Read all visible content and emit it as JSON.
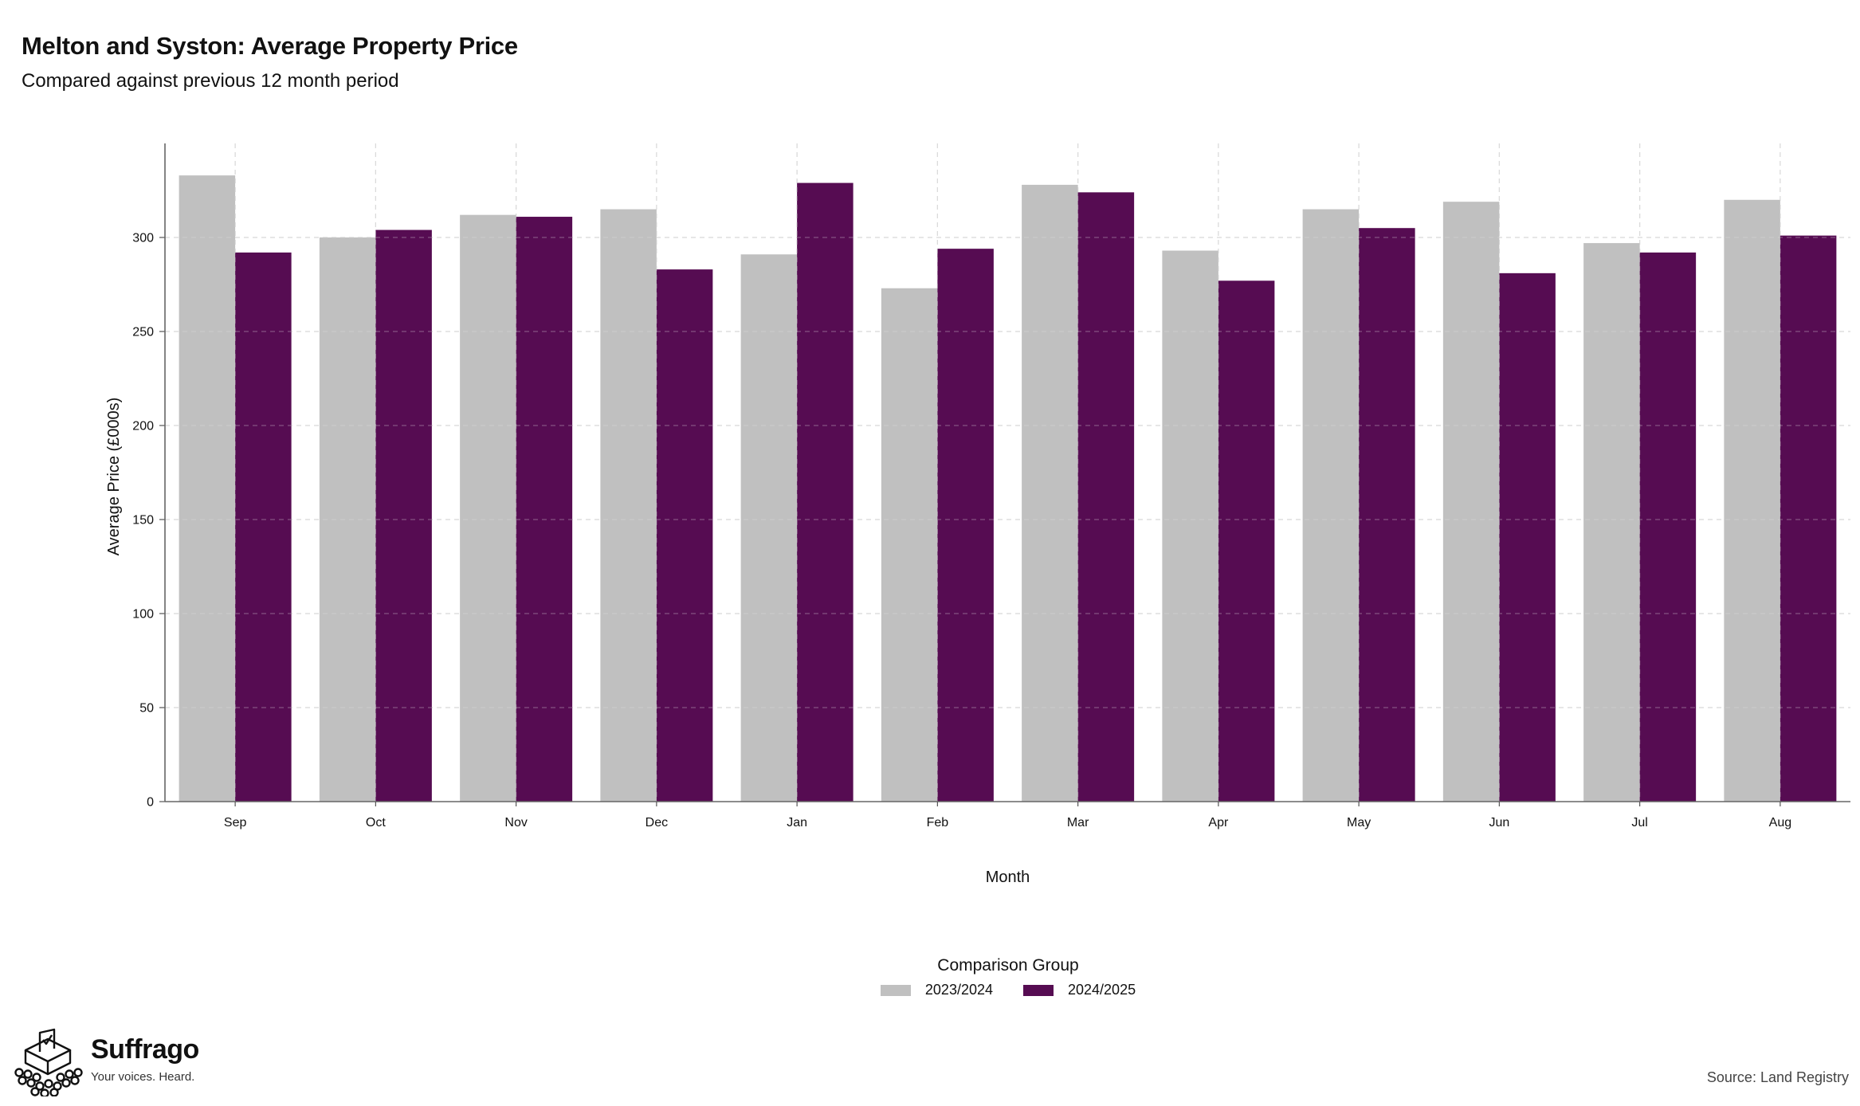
{
  "title": "Melton and Syston: Average Property Price",
  "subtitle": "Compared against previous 12 month period",
  "chart_data": {
    "type": "bar",
    "xlabel": "Month",
    "ylabel": "Average Price (£000s)",
    "categories": [
      "Sep",
      "Oct",
      "Nov",
      "Dec",
      "Jan",
      "Feb",
      "Mar",
      "Apr",
      "May",
      "Jun",
      "Jul",
      "Aug"
    ],
    "series": [
      {
        "name": "2023/2024",
        "color": "#c0c0c0",
        "values": [
          333,
          300,
          312,
          315,
          291,
          273,
          328,
          293,
          315,
          319,
          297,
          320
        ]
      },
      {
        "name": "2024/2025",
        "color": "#560c52",
        "values": [
          292,
          304,
          311,
          283,
          329,
          294,
          324,
          277,
          305,
          281,
          292,
          301
        ]
      }
    ],
    "ylim": [
      0,
      350
    ],
    "yticks": [
      0,
      50,
      100,
      150,
      200,
      250,
      300
    ],
    "grid": true,
    "legend_title": "Comparison Group",
    "legend_position": "bottom"
  },
  "brand": {
    "name": "Suffrago",
    "tagline": "Your voices. Heard.",
    "icon": "ballot-box-crowd-icon"
  },
  "source": "Source: Land Registry"
}
